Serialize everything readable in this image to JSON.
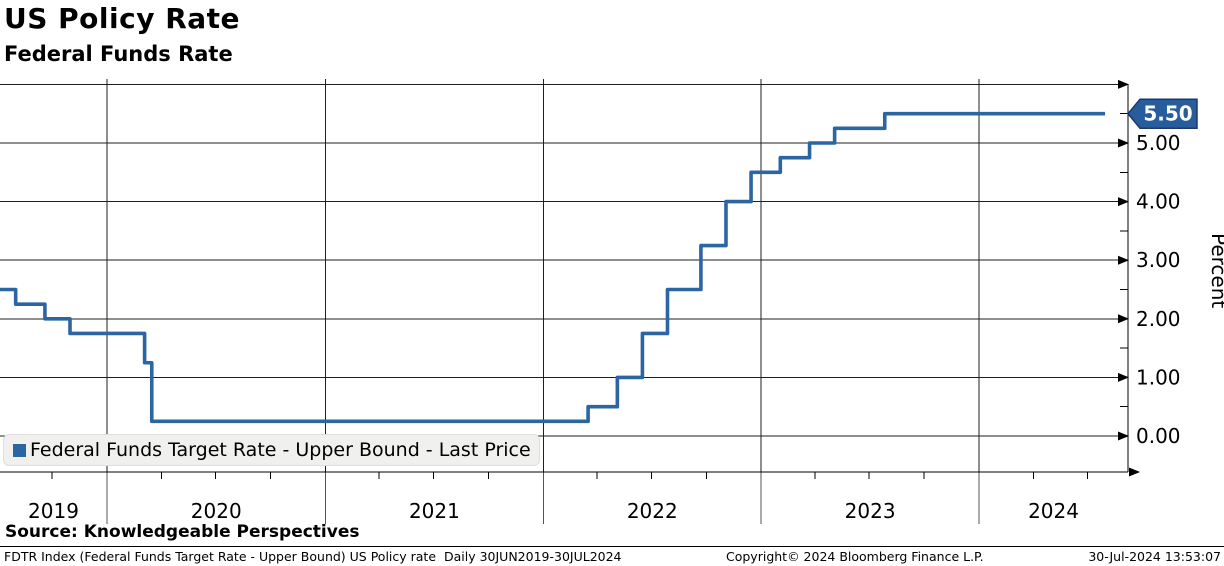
{
  "header": {
    "title": "US Policy Rate",
    "subtitle": "Federal Funds Rate"
  },
  "legend": {
    "swatch_color": "#2b66a3",
    "label": "Federal Funds Target Rate - Upper Bound - Last Price"
  },
  "source_line": "Source: Knowledgeable Perspectives",
  "footer": {
    "left": "FDTR Index (Federal Funds Target Rate - Upper Bound) US Policy rate  Daily 30JUN2019-30JUL2024",
    "center": "Copyright© 2024 Bloomberg Finance L.P.",
    "right": "30-Jul-2024 13:53:07"
  },
  "colors": {
    "line": "#2b66a3",
    "grid": "#1f1f1f",
    "axis": "#000000",
    "callout_fill": "#275d9c",
    "callout_border": "#1b3a66",
    "callout_text": "#ffffff",
    "legend_bg": "#f0f0ef"
  },
  "chart_data": {
    "type": "line",
    "step": true,
    "title": "US Policy Rate",
    "subtitle": "Federal Funds Rate",
    "series_name": "Federal Funds Target Rate - Upper Bound",
    "legend_position": "bottom-left-inside",
    "grid": true,
    "x_range": [
      "2019-06-30",
      "2024-07-30"
    ],
    "x_tick_labels": [
      "2019",
      "2020",
      "2021",
      "2022",
      "2023",
      "2024"
    ],
    "x_year_boundaries": [
      "2020-01-01",
      "2021-01-01",
      "2022-01-01",
      "2023-01-01",
      "2024-01-01"
    ],
    "x_minor_tick_interval": "quarterly",
    "y_axis": {
      "label": "Percent",
      "side": "right",
      "tick_labels": [
        "0.00",
        "1.00",
        "2.00",
        "3.00",
        "4.00",
        "5.00"
      ],
      "tick_values": [
        0,
        1,
        2,
        3,
        4,
        5
      ],
      "minor_step": 0.5,
      "range": [
        -0.6,
        6.0
      ]
    },
    "last_price": "5.50",
    "last_price_value": 5.5,
    "points": [
      [
        "2019-06-30",
        2.5
      ],
      [
        "2019-08-01",
        2.25
      ],
      [
        "2019-09-19",
        2.0
      ],
      [
        "2019-10-31",
        1.75
      ],
      [
        "2020-03-04",
        1.25
      ],
      [
        "2020-03-16",
        0.25
      ],
      [
        "2022-03-17",
        0.5
      ],
      [
        "2022-05-05",
        1.0
      ],
      [
        "2022-06-16",
        1.75
      ],
      [
        "2022-07-28",
        2.5
      ],
      [
        "2022-09-22",
        3.25
      ],
      [
        "2022-11-03",
        4.0
      ],
      [
        "2022-12-15",
        4.5
      ],
      [
        "2023-02-02",
        4.75
      ],
      [
        "2023-03-23",
        5.0
      ],
      [
        "2023-05-04",
        5.25
      ],
      [
        "2023-07-27",
        5.5
      ],
      [
        "2024-07-30",
        5.5
      ]
    ]
  }
}
